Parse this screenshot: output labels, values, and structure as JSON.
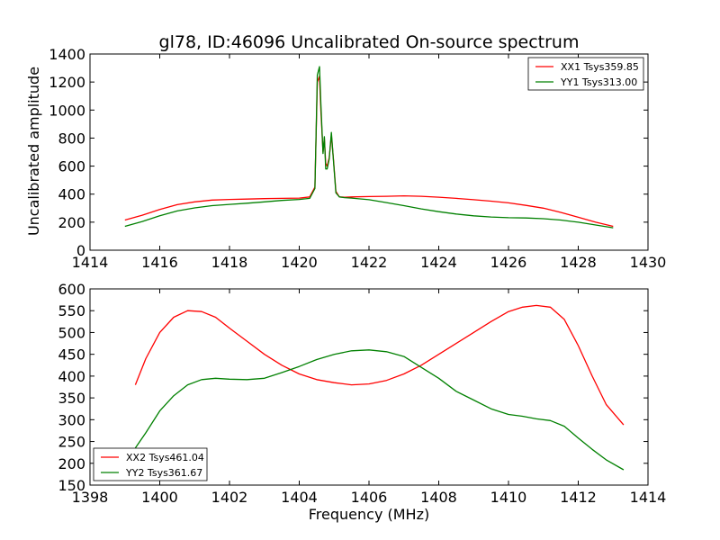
{
  "chart_data": [
    {
      "type": "line",
      "title": "gl78, ID:46096 Uncalibrated On-source spectrum",
      "xlabel": "",
      "ylabel": "Uncalibrated amplitude",
      "xlim": [
        1414,
        1430
      ],
      "ylim": [
        0,
        1400
      ],
      "xticks": [
        "1414",
        "1416",
        "1418",
        "1420",
        "1422",
        "1424",
        "1426",
        "1428",
        "1430"
      ],
      "yticks": [
        "0",
        "200",
        "400",
        "600",
        "800",
        "1000",
        "1200",
        "1400"
      ],
      "legend_position": "top-right",
      "series": [
        {
          "name": "XX1 Tsys359.85",
          "color": "#ff0000",
          "x": [
            1415.0,
            1415.5,
            1416.0,
            1416.5,
            1417.0,
            1417.5,
            1418.0,
            1418.5,
            1419.0,
            1419.5,
            1420.0,
            1420.3,
            1420.45,
            1420.52,
            1420.58,
            1420.62,
            1420.68,
            1420.72,
            1420.76,
            1420.8,
            1420.86,
            1420.92,
            1420.98,
            1421.05,
            1421.15,
            1421.3,
            1421.5,
            1422.0,
            1422.5,
            1423.0,
            1423.5,
            1424.0,
            1424.5,
            1425.0,
            1425.5,
            1426.0,
            1426.5,
            1427.0,
            1427.5,
            1428.0,
            1428.5,
            1429.0
          ],
          "values": [
            215,
            250,
            290,
            325,
            345,
            358,
            362,
            365,
            368,
            370,
            372,
            380,
            450,
            1200,
            1240,
            1000,
            700,
            800,
            620,
            600,
            660,
            820,
            650,
            420,
            380,
            378,
            380,
            383,
            385,
            388,
            385,
            378,
            370,
            360,
            350,
            338,
            320,
            300,
            270,
            235,
            200,
            170
          ]
        },
        {
          "name": "YY1 Tsys313.00",
          "color": "#008000",
          "x": [
            1415.0,
            1415.5,
            1416.0,
            1416.5,
            1417.0,
            1417.5,
            1418.0,
            1418.5,
            1419.0,
            1419.5,
            1420.0,
            1420.3,
            1420.45,
            1420.52,
            1420.58,
            1420.62,
            1420.68,
            1420.72,
            1420.76,
            1420.8,
            1420.86,
            1420.92,
            1420.98,
            1421.05,
            1421.15,
            1421.3,
            1421.5,
            1422.0,
            1422.5,
            1423.0,
            1423.5,
            1424.0,
            1424.5,
            1425.0,
            1425.5,
            1426.0,
            1426.5,
            1427.0,
            1427.5,
            1428.0,
            1428.5,
            1429.0
          ],
          "values": [
            170,
            205,
            245,
            280,
            302,
            318,
            327,
            335,
            345,
            355,
            362,
            370,
            440,
            1250,
            1310,
            1050,
            690,
            810,
            580,
            580,
            650,
            840,
            640,
            410,
            380,
            375,
            372,
            360,
            340,
            318,
            295,
            275,
            258,
            245,
            237,
            232,
            230,
            225,
            215,
            200,
            180,
            160
          ]
        }
      ]
    },
    {
      "type": "line",
      "title": "",
      "xlabel": "Frequency (MHz)",
      "ylabel": "",
      "xlim": [
        1398,
        1414
      ],
      "ylim": [
        150,
        600
      ],
      "xticks": [
        "1398",
        "1400",
        "1402",
        "1404",
        "1406",
        "1408",
        "1410",
        "1412",
        "1414"
      ],
      "yticks": [
        "150",
        "200",
        "250",
        "300",
        "350",
        "400",
        "450",
        "500",
        "550",
        "600"
      ],
      "legend_position": "bottom-left",
      "series": [
        {
          "name": "XX2 Tsys461.04",
          "color": "#ff0000",
          "x": [
            1399.3,
            1399.6,
            1400.0,
            1400.4,
            1400.8,
            1401.2,
            1401.6,
            1402.0,
            1402.5,
            1403.0,
            1403.5,
            1404.0,
            1404.5,
            1405.0,
            1405.5,
            1406.0,
            1406.5,
            1407.0,
            1407.5,
            1408.0,
            1408.5,
            1409.0,
            1409.5,
            1410.0,
            1410.4,
            1410.8,
            1411.2,
            1411.6,
            1412.0,
            1412.4,
            1412.8,
            1413.3
          ],
          "values": [
            380,
            440,
            500,
            535,
            550,
            548,
            535,
            510,
            480,
            450,
            425,
            405,
            392,
            385,
            380,
            382,
            390,
            405,
            425,
            450,
            475,
            500,
            525,
            548,
            558,
            562,
            558,
            530,
            470,
            400,
            335,
            288
          ]
        },
        {
          "name": "YY2 Tsys361.67",
          "color": "#008000",
          "x": [
            1399.3,
            1399.6,
            1400.0,
            1400.4,
            1400.8,
            1401.2,
            1401.6,
            1402.0,
            1402.5,
            1403.0,
            1403.5,
            1404.0,
            1404.5,
            1405.0,
            1405.5,
            1406.0,
            1406.5,
            1407.0,
            1407.5,
            1408.0,
            1408.5,
            1409.0,
            1409.5,
            1410.0,
            1410.4,
            1410.8,
            1411.2,
            1411.6,
            1412.0,
            1412.4,
            1412.8,
            1413.3
          ],
          "values": [
            235,
            270,
            320,
            355,
            380,
            392,
            395,
            393,
            392,
            395,
            408,
            422,
            438,
            450,
            458,
            460,
            456,
            445,
            420,
            395,
            365,
            345,
            325,
            312,
            308,
            302,
            298,
            285,
            258,
            232,
            208,
            185
          ]
        }
      ]
    }
  ]
}
